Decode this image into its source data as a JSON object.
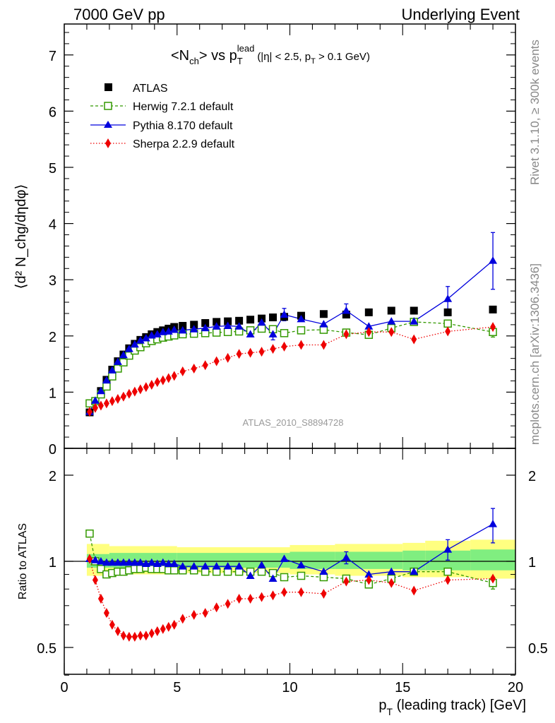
{
  "header": {
    "left": "7000 GeV pp",
    "right": "Underlying Event"
  },
  "side_text": {
    "rivet": "Rivet 3.1.10, ≥ 300k events",
    "mcplots": "mcplots.cern.ch [arXiv:1306.3436]"
  },
  "watermark": "ATLAS_2010_S8894728",
  "chart_data": [
    {
      "type": "scatter",
      "title": {
        "main_a": "<N",
        "main_sub": "ch",
        "main_b": "> vs p",
        "main_sub2": "T",
        "main_sup": "lead",
        "cut_a": "(|η| < 2.5, p",
        "cut_sub": "T",
        "cut_b": " > 0.1 GeV)"
      },
      "ylabel": "⟨d² N_chg/dηdφ⟩",
      "xlim": [
        0,
        20
      ],
      "ylim": [
        0,
        7.6
      ],
      "yticks": [
        "0",
        "1",
        "2",
        "3",
        "4",
        "5",
        "6",
        "7"
      ],
      "x": [
        1.125,
        1.375,
        1.625,
        1.875,
        2.125,
        2.375,
        2.625,
        2.875,
        3.125,
        3.375,
        3.625,
        3.875,
        4.125,
        4.375,
        4.625,
        4.875,
        5.25,
        5.75,
        6.25,
        6.75,
        7.25,
        7.75,
        8.25,
        8.75,
        9.25,
        9.75,
        10.5,
        11.5,
        12.5,
        13.5,
        14.5,
        15.5,
        17.0,
        19.0
      ],
      "series": [
        {
          "name": "ATLAS",
          "color": "#000000",
          "marker": "square",
          "values": [
            0.64,
            0.84,
            1.02,
            1.22,
            1.4,
            1.55,
            1.67,
            1.78,
            1.86,
            1.93,
            1.98,
            2.03,
            2.07,
            2.1,
            2.13,
            2.16,
            2.18,
            2.2,
            2.23,
            2.25,
            2.26,
            2.27,
            2.29,
            2.31,
            2.33,
            2.34,
            2.36,
            2.39,
            2.38,
            2.42,
            2.45,
            2.45,
            2.42,
            2.47
          ]
        },
        {
          "name": "Herwig 7.2.1 default",
          "color": "#339900",
          "marker": "open-square",
          "values": [
            0.8,
            0.84,
            0.96,
            1.1,
            1.28,
            1.42,
            1.53,
            1.65,
            1.74,
            1.8,
            1.87,
            1.91,
            1.94,
            1.97,
            1.99,
            2.01,
            2.03,
            2.04,
            2.05,
            2.06,
            2.07,
            2.08,
            2.1,
            2.13,
            2.12,
            2.05,
            2.1,
            2.11,
            2.06,
            2.02,
            2.14,
            2.25,
            2.22,
            2.07
          ]
        },
        {
          "name": "Pythia 8.170 default",
          "color": "#0000dd",
          "marker": "triangle",
          "values": [
            0.65,
            0.85,
            1.02,
            1.21,
            1.39,
            1.54,
            1.66,
            1.77,
            1.85,
            1.92,
            1.96,
            2.01,
            2.03,
            2.07,
            2.08,
            2.11,
            2.1,
            2.12,
            2.14,
            2.17,
            2.18,
            2.17,
            2.03,
            2.24,
            2.03,
            2.38,
            2.3,
            2.21,
            2.45,
            2.17,
            2.26,
            2.26,
            2.66,
            3.34
          ]
        },
        {
          "name": "Sherpa 2.2.9 default",
          "color": "#ee0000",
          "marker": "diamond",
          "values": [
            0.65,
            0.72,
            0.76,
            0.8,
            0.84,
            0.88,
            0.92,
            0.97,
            1.01,
            1.05,
            1.09,
            1.13,
            1.18,
            1.21,
            1.25,
            1.29,
            1.37,
            1.42,
            1.48,
            1.55,
            1.61,
            1.68,
            1.7,
            1.72,
            1.77,
            1.81,
            1.84,
            1.84,
            2.03,
            2.07,
            2.07,
            1.94,
            2.08,
            2.16
          ]
        }
      ],
      "error_bars": [
        {
          "series": "Pythia 8.170 default",
          "x": 19.0,
          "lo": 2.83,
          "hi": 3.84
        },
        {
          "series": "Pythia 8.170 default",
          "x": 17.0,
          "lo": 2.45,
          "hi": 2.88
        },
        {
          "series": "Pythia 8.170 default",
          "x": 12.5,
          "lo": 2.35,
          "hi": 2.57
        },
        {
          "series": "Pythia 8.170 default",
          "x": 9.75,
          "lo": 2.27,
          "hi": 2.49
        },
        {
          "series": "Pythia 8.170 default",
          "x": 9.25,
          "lo": 1.93,
          "hi": 2.13
        },
        {
          "series": "Herwig 7.2.1 default",
          "x": 19.0,
          "lo": 1.98,
          "hi": 2.16
        }
      ]
    },
    {
      "type": "scatter",
      "ylabel": "Ratio to ATLAS",
      "xlabel": "p_T (leading track) [GeV]",
      "xlim": [
        0,
        20
      ],
      "ylim": [
        0.35,
        2.35
      ],
      "xticks": [
        "0",
        "5",
        "10",
        "15",
        "20"
      ],
      "yticks": [
        "0.5",
        "1",
        "2"
      ],
      "series": [
        {
          "name": "Herwig 7.2.1 default",
          "color": "#339900",
          "values": [
            1.25,
            1.0,
            0.94,
            0.9,
            0.91,
            0.92,
            0.92,
            0.93,
            0.94,
            0.94,
            0.95,
            0.94,
            0.94,
            0.94,
            0.93,
            0.93,
            0.93,
            0.93,
            0.92,
            0.92,
            0.92,
            0.92,
            0.92,
            0.92,
            0.91,
            0.88,
            0.89,
            0.88,
            0.87,
            0.83,
            0.87,
            0.92,
            0.92,
            0.84
          ]
        },
        {
          "name": "Pythia 8.170 default",
          "color": "#0000dd",
          "values": [
            1.02,
            1.01,
            1.0,
            0.99,
            0.99,
            0.99,
            0.99,
            0.99,
            0.99,
            0.99,
            0.98,
            0.99,
            0.98,
            0.99,
            0.98,
            0.98,
            0.96,
            0.96,
            0.96,
            0.96,
            0.96,
            0.96,
            0.89,
            0.97,
            0.87,
            1.02,
            0.97,
            0.92,
            1.03,
            0.9,
            0.92,
            0.92,
            1.1,
            1.35
          ]
        },
        {
          "name": "Sherpa 2.2.9 default",
          "color": "#ee0000",
          "values": [
            1.02,
            0.86,
            0.74,
            0.66,
            0.6,
            0.57,
            0.55,
            0.545,
            0.545,
            0.55,
            0.55,
            0.56,
            0.57,
            0.58,
            0.59,
            0.6,
            0.63,
            0.65,
            0.66,
            0.69,
            0.71,
            0.74,
            0.74,
            0.75,
            0.76,
            0.78,
            0.78,
            0.77,
            0.85,
            0.86,
            0.84,
            0.79,
            0.86,
            0.87
          ]
        }
      ],
      "error_bars": [
        {
          "series": "Pythia 8.170 default",
          "x": 19.0,
          "lo": 1.16,
          "hi": 1.53
        },
        {
          "series": "Pythia 8.170 default",
          "x": 17.0,
          "lo": 1.01,
          "hi": 1.19
        },
        {
          "series": "Pythia 8.170 default",
          "x": 12.5,
          "lo": 0.98,
          "hi": 1.08
        },
        {
          "series": "Herwig 7.2.1 default",
          "x": 19.0,
          "lo": 0.8,
          "hi": 0.88
        }
      ],
      "bands": {
        "x_edges": [
          1.0,
          2.0,
          5.0,
          10.0,
          12.0,
          15.0,
          16.0,
          18.0,
          20.0
        ],
        "yellow": [
          [
            0.89,
            1.15
          ],
          [
            0.9,
            1.13
          ],
          [
            0.91,
            1.12
          ],
          [
            0.9,
            1.14
          ],
          [
            0.89,
            1.15
          ],
          [
            0.88,
            1.16
          ],
          [
            0.88,
            1.18
          ],
          [
            0.87,
            1.19
          ]
        ],
        "green": [
          [
            0.95,
            1.06
          ],
          [
            0.95,
            1.07
          ],
          [
            0.95,
            1.07
          ],
          [
            0.94,
            1.08
          ],
          [
            0.94,
            1.08
          ],
          [
            0.93,
            1.09
          ],
          [
            0.93,
            1.09
          ],
          [
            0.93,
            1.1
          ]
        ]
      }
    }
  ]
}
